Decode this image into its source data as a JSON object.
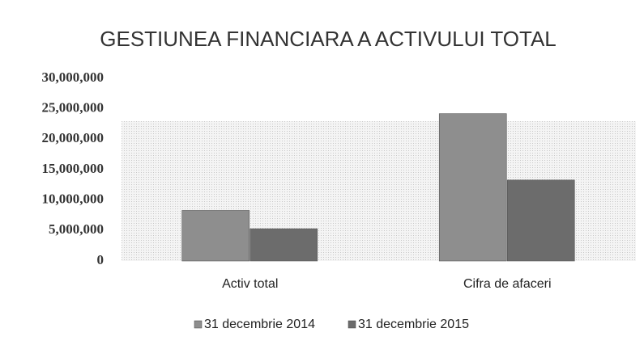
{
  "chart_data": {
    "type": "bar",
    "title": "GESTIUNEA FINANCIARA A ACTIVULUI TOTAL",
    "categories": [
      "Activ total",
      "Cifra de afaceri"
    ],
    "series": [
      {
        "name": "31 decembrie 2014",
        "color": "#8e8e8e",
        "values": [
          8300000,
          24200000
        ]
      },
      {
        "name": "31 decembrie 2015",
        "color": "#6c6c6c",
        "values": [
          5300000,
          13300000
        ]
      }
    ],
    "ylim": [
      0,
      30000000
    ],
    "yticks": [
      0,
      {
        "value": 5000000,
        "label": "5,000,000"
      },
      {
        "value": 10000000,
        "label": "10,000,000"
      },
      {
        "value": 15000000,
        "label": "15,000,000"
      },
      {
        "value": 20000000,
        "label": "20,000,000"
      },
      {
        "value": 25000000,
        "label": "25,000,000"
      },
      {
        "value": 30000000,
        "label": "30,000,000"
      }
    ],
    "grid": false,
    "legend": "bottom"
  }
}
